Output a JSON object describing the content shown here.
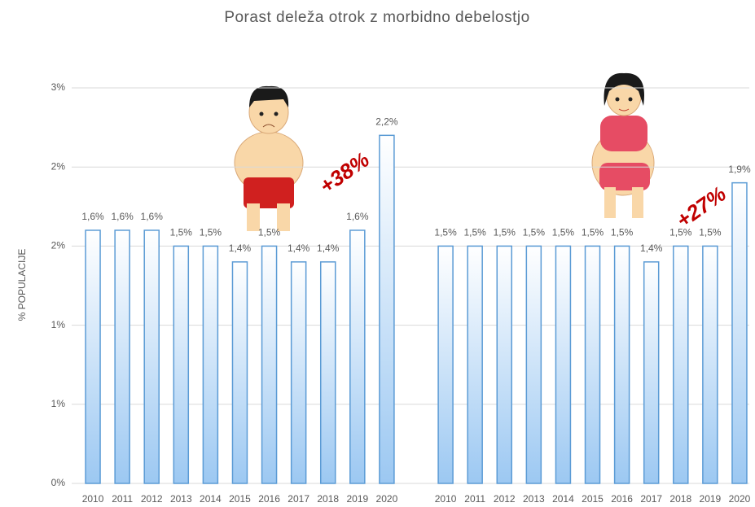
{
  "chart_data": {
    "type": "bar",
    "title": "Porast deleža otrok z morbidno debelostjo",
    "ylabel": "% POPULACIJE",
    "categories": [
      "2010",
      "2011",
      "2012",
      "2013",
      "2014",
      "2015",
      "2016",
      "2017",
      "2018",
      "2019",
      "2020",
      null,
      "2010",
      "2011",
      "2012",
      "2013",
      "2014",
      "2015",
      "2016",
      "2017",
      "2018",
      "2019",
      "2020"
    ],
    "values": [
      1.6,
      1.6,
      1.6,
      1.5,
      1.5,
      1.4,
      1.5,
      1.4,
      1.4,
      1.6,
      2.2,
      null,
      1.5,
      1.5,
      1.5,
      1.5,
      1.5,
      1.5,
      1.5,
      1.4,
      1.5,
      1.5,
      1.9
    ],
    "value_labels": [
      "1,6%",
      "1,6%",
      "1,6%",
      "1,5%",
      "1,5%",
      "1,4%",
      "1,5%",
      "1,4%",
      "1,4%",
      "1,6%",
      "2,2%",
      null,
      "1,5%",
      "1,5%",
      "1,5%",
      "1,5%",
      "1,5%",
      "1,5%",
      "1,5%",
      "1,4%",
      "1,5%",
      "1,5%",
      "1,9%"
    ],
    "color": "#5b9bd5",
    "ylim": [
      0,
      2.5
    ],
    "yticks": [
      {
        "value": 0,
        "label": "0%"
      },
      {
        "value": 0.5,
        "label": "1%"
      },
      {
        "value": 1,
        "label": "1%"
      },
      {
        "value": 1.5,
        "label": "2%"
      },
      {
        "value": 2,
        "label": "2%"
      },
      {
        "value": 2.5,
        "label": "3%"
      }
    ],
    "grid": true,
    "annotations": [
      "+38%",
      "+27%"
    ]
  }
}
